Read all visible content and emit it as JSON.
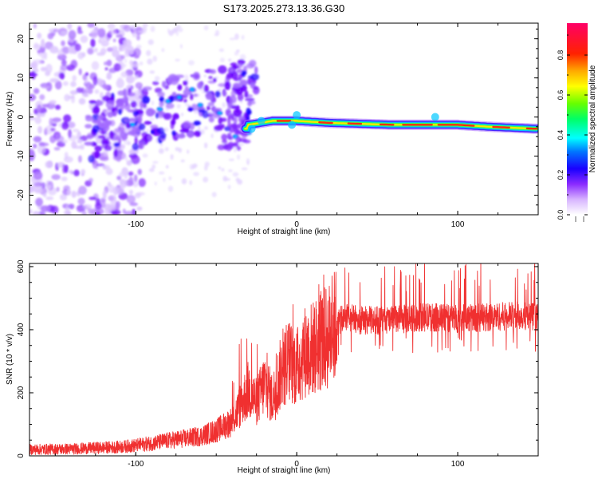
{
  "page_title": "S173.2025.273.13.36.G30",
  "chart_data": [
    {
      "type": "heatmap",
      "title": "S173.2025.273.13.36.G30",
      "xlabel": "Height of straight line (km)",
      "ylabel": "Frequency (Hz)",
      "xlim": [
        -166,
        150
      ],
      "ylim": [
        -25,
        24
      ],
      "x_ticks": [
        -100,
        0,
        100
      ],
      "x_tick_labels": [
        "-100",
        "0",
        "100"
      ],
      "y_ticks": [
        -20,
        -10,
        0,
        10,
        20
      ],
      "y_tick_labels": [
        "-20",
        "-10",
        "0",
        "10",
        "20"
      ],
      "colorbar": {
        "label": "Normalized spectral amplitude",
        "range": [
          0,
          0.96
        ],
        "ticks": [
          0,
          0.2,
          0.4,
          0.6,
          0.8
        ],
        "tick_labels": [
          "0.0",
          "0.2",
          "0.4",
          "0.6",
          "0.8"
        ],
        "colors": [
          "#ffffff",
          "#cc88ff",
          "#7a00ff",
          "#0000ff",
          "#00ffff",
          "#00ff00",
          "#ffff00",
          "#ff8800",
          "#ff0000",
          "#ff0066"
        ]
      },
      "ridge": {
        "description": "dominant spectral line",
        "points": [
          [
            -30,
            -2
          ],
          [
            -15,
            -1
          ],
          [
            0,
            -1
          ],
          [
            20,
            -1.5
          ],
          [
            60,
            -2
          ],
          [
            100,
            -2
          ],
          [
            120,
            -2.5
          ],
          [
            148,
            -3
          ]
        ]
      }
    },
    {
      "type": "line",
      "xlabel": "Height of straight line (km)",
      "ylabel": "SNR (10 * v/v)",
      "xlim": [
        -166,
        150
      ],
      "ylim": [
        0,
        610
      ],
      "x_ticks": [
        -100,
        0,
        100
      ],
      "x_tick_labels": [
        "-100",
        "0",
        "100"
      ],
      "y_ticks": [
        0,
        200,
        400,
        600
      ],
      "y_tick_labels": [
        "0",
        "200",
        "400",
        "600"
      ],
      "color": "#f03030",
      "series": [
        {
          "name": "SNR",
          "x": [
            -166,
            -140,
            -110,
            -100,
            -90,
            -80,
            -70,
            -60,
            -50,
            -40,
            -35,
            -30,
            -25,
            -20,
            -15,
            -10,
            -5,
            0,
            5,
            10,
            15,
            20,
            25,
            30,
            40,
            60,
            80,
            100,
            120,
            140,
            150
          ],
          "y": [
            20,
            22,
            28,
            33,
            40,
            48,
            55,
            62,
            80,
            110,
            160,
            210,
            170,
            230,
            180,
            260,
            300,
            280,
            330,
            340,
            360,
            380,
            420,
            440,
            430,
            430,
            440,
            435,
            440,
            445,
            440
          ]
        }
      ]
    }
  ]
}
